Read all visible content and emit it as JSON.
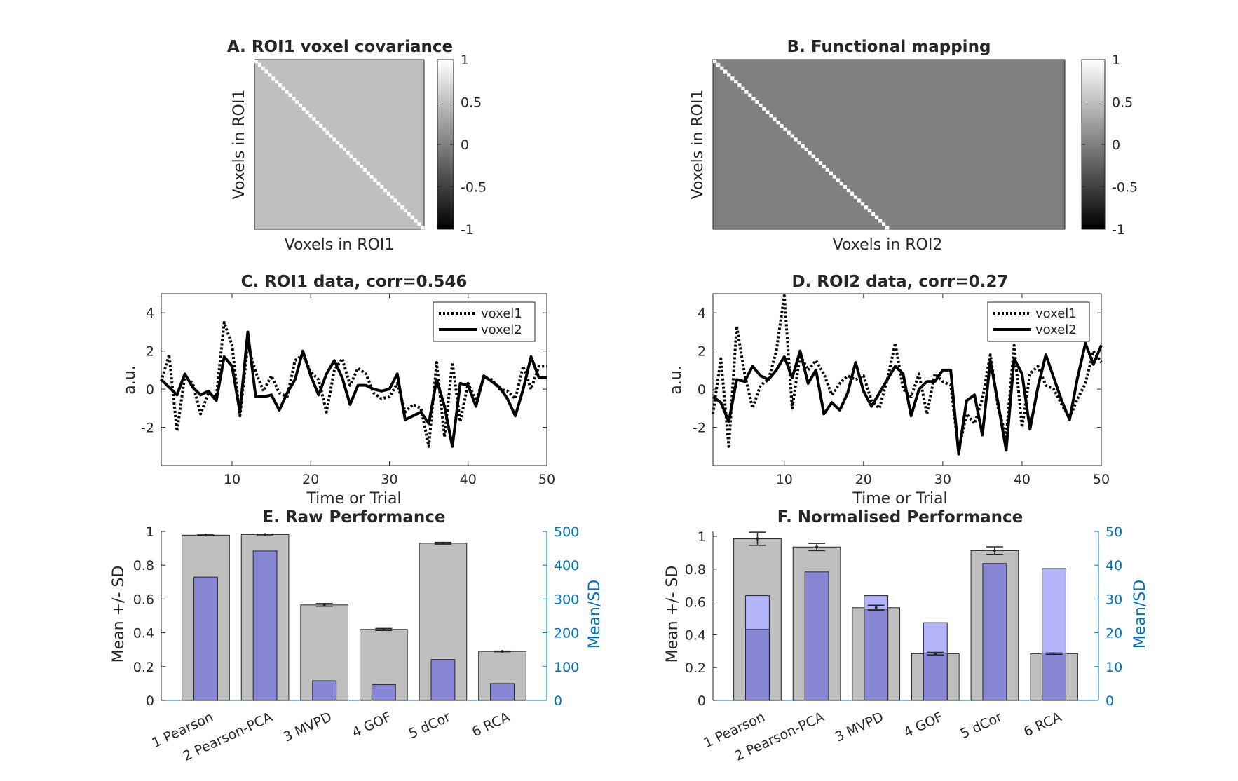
{
  "colors": {
    "axis": "#262626",
    "right_axis": "#0072BD",
    "bar_gray": "#BFBFBF",
    "bar_blue_dark": "#8787D6",
    "bar_blue_light": "#B3B3F9",
    "line": "#000000"
  },
  "chart_data": [
    {
      "id": "A",
      "type": "heatmap",
      "title": "A. ROI1 voxel covariance",
      "xlabel": "Voxels in ROI1",
      "ylabel": "Voxels in ROI1",
      "size": 50,
      "diagonal_value": 1,
      "offdiagonal_value": 0.5,
      "colorbar": {
        "limits": [
          -1,
          1
        ],
        "ticks": [
          1,
          0.5,
          0,
          -0.5,
          -1
        ],
        "ticklabels": [
          "1",
          "0.5",
          "0",
          "-0.5",
          "-1"
        ]
      }
    },
    {
      "id": "B",
      "type": "heatmap",
      "title": "B. Functional mapping",
      "xlabel": "Voxels in ROI2",
      "ylabel": "Voxels in ROI1",
      "rows": 50,
      "cols": 100,
      "diagonal_value": 1,
      "offdiagonal_value": 0,
      "colorbar": {
        "limits": [
          -1,
          1
        ],
        "ticks": [
          1,
          0.5,
          0,
          -0.5,
          -1
        ],
        "ticklabels": [
          "1",
          "0.5",
          "0",
          "-0.5",
          "-1"
        ]
      }
    },
    {
      "id": "C",
      "type": "line",
      "title": "C. ROI1 data, corr=0.546",
      "xlabel": "Time or Trial",
      "ylabel": "a.u.",
      "xlim": [
        1,
        50
      ],
      "ylim": [
        -4,
        5
      ],
      "xticks": [
        10,
        20,
        30,
        40,
        50
      ],
      "yticks": [
        -2,
        0,
        2,
        4
      ],
      "legend": "top-right",
      "x": [
        1,
        2,
        3,
        4,
        5,
        6,
        7,
        8,
        9,
        10,
        11,
        12,
        13,
        14,
        15,
        16,
        17,
        18,
        19,
        20,
        21,
        22,
        23,
        24,
        25,
        26,
        27,
        28,
        29,
        30,
        31,
        32,
        33,
        34,
        35,
        36,
        37,
        38,
        39,
        40,
        41,
        42,
        43,
        44,
        45,
        46,
        47,
        48,
        49,
        50
      ],
      "series": [
        {
          "name": "voxel1",
          "style": "dotted",
          "values": [
            0.4,
            1.8,
            -2.2,
            0.7,
            0.3,
            -1.3,
            -0.2,
            -0.4,
            3.5,
            2.3,
            -1.4,
            2.3,
            0.9,
            -0.1,
            0.7,
            -0.2,
            -0.4,
            1.5,
            1.8,
            0.9,
            0.5,
            -1.2,
            1.0,
            1.6,
            0.2,
            1.1,
            0.8,
            -0.2,
            -0.5,
            -0.4,
            0.3,
            -1.2,
            -0.8,
            -1.0,
            -3.0,
            1.4,
            -2.5,
            1.4,
            -1.7,
            0.3,
            -0.6,
            0.6,
            0.5,
            0.0,
            -0.1,
            -0.5,
            1.2,
            0.0,
            1.2,
            1.2
          ]
        },
        {
          "name": "voxel2",
          "style": "solid",
          "values": [
            0.5,
            0.1,
            -0.3,
            0.8,
            0.1,
            -0.3,
            -0.1,
            -0.6,
            1.7,
            1.2,
            -1.2,
            3.0,
            -0.4,
            -0.4,
            -0.3,
            -1.1,
            -0.2,
            0.5,
            2.0,
            0.7,
            -0.3,
            0.8,
            1.5,
            0.6,
            -0.8,
            0.2,
            0.2,
            0.0,
            -0.1,
            0.0,
            0.8,
            -1.6,
            -1.4,
            -1.2,
            -1.8,
            0.5,
            -0.9,
            -3.0,
            0.3,
            0.2,
            -0.9,
            0.7,
            0.4,
            0.1,
            -0.5,
            -1.4,
            0.0,
            1.7,
            0.6,
            0.6
          ]
        }
      ]
    },
    {
      "id": "D",
      "type": "line",
      "title": "D. ROI2 data, corr=0.27",
      "xlabel": "Time or Trial",
      "ylabel": "a.u.",
      "xlim": [
        1,
        50
      ],
      "ylim": [
        -4,
        5
      ],
      "xticks": [
        10,
        20,
        30,
        40,
        50
      ],
      "yticks": [
        -2,
        0,
        2,
        4
      ],
      "legend": "top-right",
      "x": [
        1,
        2,
        3,
        4,
        5,
        6,
        7,
        8,
        9,
        10,
        11,
        12,
        13,
        14,
        15,
        16,
        17,
        18,
        19,
        20,
        21,
        22,
        23,
        24,
        25,
        26,
        27,
        28,
        29,
        30,
        31,
        32,
        33,
        34,
        35,
        36,
        37,
        38,
        39,
        40,
        41,
        42,
        43,
        44,
        45,
        46,
        47,
        48,
        49,
        50
      ],
      "series": [
        {
          "name": "voxel1",
          "style": "dotted",
          "values": [
            -1.3,
            1.6,
            -3.0,
            3.3,
            0.8,
            -1.0,
            0.2,
            0.5,
            2.0,
            4.9,
            -1.0,
            1.8,
            1.0,
            1.5,
            0.8,
            -0.3,
            0.3,
            0.7,
            0.5,
            0.7,
            -0.6,
            -1.0,
            0.5,
            2.4,
            0.0,
            -0.4,
            0.8,
            -1.3,
            0.8,
            0.4,
            0.2,
            -3.2,
            -1.3,
            -1.8,
            -0.5,
            1.8,
            -1.0,
            -2.5,
            2.3,
            -2.0,
            0.8,
            1.2,
            0.2,
            0.0,
            -0.8,
            -1.5,
            -0.5,
            0.3,
            2.0,
            1.4
          ]
        },
        {
          "name": "voxel2",
          "style": "solid",
          "values": [
            -0.4,
            -0.7,
            -1.7,
            0.5,
            0.4,
            1.2,
            0.7,
            0.5,
            1.0,
            1.7,
            0.6,
            2.0,
            0.3,
            1.0,
            -1.3,
            -0.7,
            -1.1,
            -0.2,
            1.4,
            -0.1,
            -0.9,
            -0.2,
            0.5,
            1.2,
            0.8,
            -1.4,
            0.0,
            0.4,
            0.4,
            1.0,
            1.0,
            -3.4,
            -0.6,
            -0.3,
            -2.4,
            1.5,
            -0.8,
            -3.2,
            1.6,
            0.8,
            -2.1,
            0.1,
            1.8,
            0.6,
            -0.6,
            -1.6,
            0.6,
            2.4,
            1.3,
            2.3
          ]
        }
      ]
    },
    {
      "id": "E",
      "type": "bar",
      "title": "E. Raw Performance",
      "ylabel": "Mean +/- SD",
      "ylabel_right": "Mean/SD",
      "categories": [
        "1 Pearson",
        "2 Pearson-PCA",
        "3 MVPD",
        "4 GOF",
        "5 dCor",
        "6 RCA"
      ],
      "ylim": [
        0,
        1
      ],
      "yticks": [
        0,
        0.2,
        0.4,
        0.6,
        0.8,
        1
      ],
      "yticklabels": [
        "0",
        "0.2",
        "0.4",
        "0.6",
        "0.8",
        "1"
      ],
      "ylim_right": [
        0,
        500
      ],
      "yticks_right": [
        0,
        100,
        200,
        300,
        400,
        500
      ],
      "series": [
        {
          "name": "",
          "axis": "left",
          "values": [
            0.978,
            0.982,
            0.565,
            0.42,
            0.93,
            0.29
          ],
          "sd": [
            0.002,
            0.002,
            0.008,
            0.006,
            0.005,
            0.002
          ]
        },
        {
          "name": "",
          "axis": "right",
          "values": [
            365,
            442,
            58,
            47,
            121,
            50
          ],
          "overlay": [
            365,
            442,
            58,
            47,
            121,
            50
          ]
        }
      ]
    },
    {
      "id": "F",
      "type": "bar",
      "title": "F. Normalised Performance",
      "ylabel": "Mean +/- SD",
      "ylabel_right": "Mean/SD",
      "categories": [
        "1 Pearson",
        "2 Pearson-PCA",
        "3 MVPD",
        "4 GOF",
        "5 dCor",
        "6 RCA"
      ],
      "ylim": [
        0,
        1.03
      ],
      "yticks": [
        0,
        0.2,
        0.4,
        0.6,
        0.8,
        1
      ],
      "yticklabels": [
        "0",
        "0.2",
        "0.4",
        "0.6",
        "0.8",
        "1"
      ],
      "ylim_right": [
        0,
        50
      ],
      "yticks_right": [
        0,
        10,
        20,
        30,
        40,
        50
      ],
      "series": [
        {
          "name": "",
          "axis": "left",
          "values": [
            0.985,
            0.935,
            0.565,
            0.285,
            0.913,
            0.285
          ],
          "sd": [
            0.04,
            0.022,
            0.015,
            0.008,
            0.023,
            0.004
          ]
        },
        {
          "name": "",
          "axis": "right",
          "values": [
            21,
            38,
            27,
            14,
            40.5,
            14
          ],
          "overlay": [
            31,
            38,
            31,
            23,
            40.5,
            39
          ]
        }
      ]
    }
  ]
}
